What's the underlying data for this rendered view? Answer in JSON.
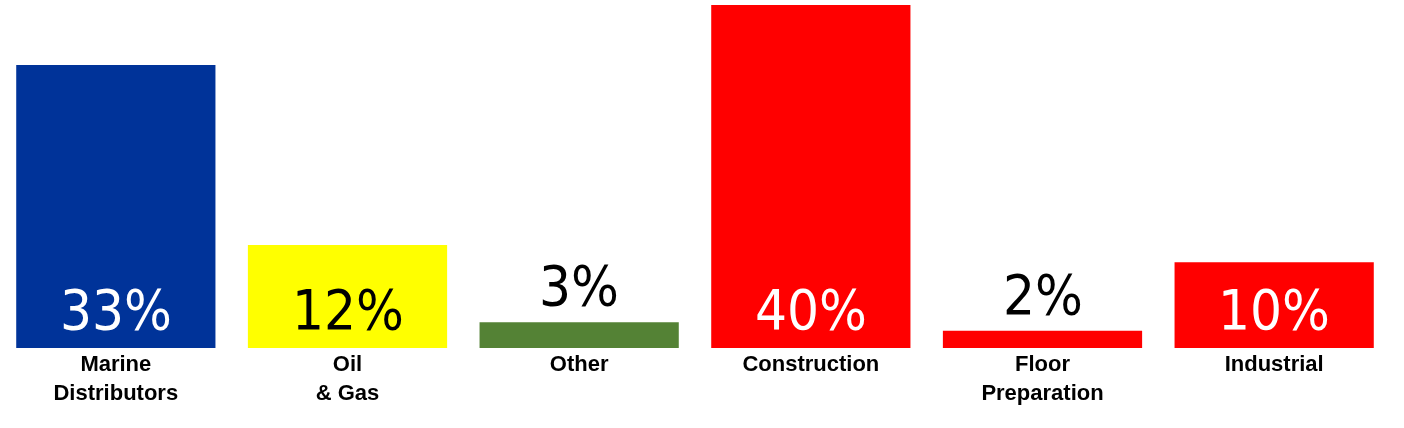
{
  "chart_data": {
    "type": "bar",
    "categories": [
      "Marine Distributors",
      "Oil & Gas",
      "Other",
      "Construction",
      "Floor Preparation",
      "Industrial"
    ],
    "values": [
      33,
      12,
      3,
      40,
      2,
      10
    ],
    "colors": [
      "#003399",
      "#ffff00",
      "#548235",
      "#ff0000",
      "#ff0000",
      "#ff0000"
    ],
    "value_labels": [
      "33%",
      "12%",
      "3%",
      "40%",
      "2%",
      "10%"
    ],
    "ylim": [
      0,
      40
    ]
  }
}
